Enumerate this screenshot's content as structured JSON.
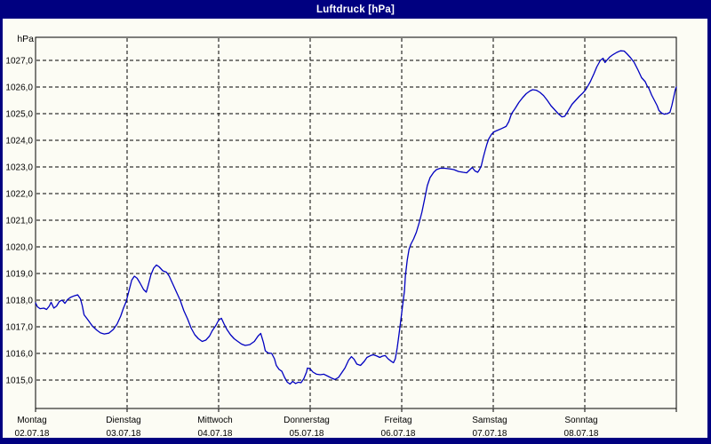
{
  "window": {
    "title": "Luftdruck [hPa]"
  },
  "colors": {
    "frame": "#000080",
    "title_text": "#FFFFFF",
    "plot_background": "#FCFCF4",
    "grid": "#000000",
    "axis": "#000000",
    "line": "#0000C0",
    "label_text": "#000000"
  },
  "chart_data": {
    "type": "line",
    "title": "Luftdruck [hPa]",
    "ylabel": "hPa",
    "xlabel": "",
    "grid": "dashed",
    "legend": "none",
    "ylim": [
      1013.9,
      1027.9
    ],
    "xlim_days": [
      0,
      7
    ],
    "y_tick_values": [
      1027,
      1026,
      1025,
      1024,
      1023,
      1022,
      1021,
      1020,
      1019,
      1018,
      1017,
      1016,
      1015
    ],
    "y_tick_labels": [
      "1027,0",
      "1026,0",
      "1025,0",
      "1024,0",
      "1023,0",
      "1022,0",
      "1021,0",
      "1020,0",
      "1019,0",
      "1018,0",
      "1017,0",
      "1016,0",
      "1015,0"
    ],
    "x_ticks": [
      {
        "day": "Montag",
        "date": "02.07.18"
      },
      {
        "day": "Dienstag",
        "date": "03.07.18"
      },
      {
        "day": "Mittwoch",
        "date": "04.07.18"
      },
      {
        "day": "Donnerstag",
        "date": "05.07.18"
      },
      {
        "day": "Freitag",
        "date": "06.07.18"
      },
      {
        "day": "Samstag",
        "date": "07.07.18"
      },
      {
        "day": "Sonntag",
        "date": "08.07.18"
      }
    ],
    "series": [
      {
        "name": "Luftdruck",
        "unit": "hPa",
        "x_unit": "days since Montag 02.07.18 00:00",
        "points": [
          [
            0,
            1017.9
          ],
          [
            0.02,
            1017.75
          ],
          [
            0.05,
            1017.68
          ],
          [
            0.09,
            1017.7
          ],
          [
            0.12,
            1017.65
          ],
          [
            0.15,
            1017.78
          ],
          [
            0.17,
            1017.92
          ],
          [
            0.2,
            1017.7
          ],
          [
            0.23,
            1017.78
          ],
          [
            0.26,
            1017.95
          ],
          [
            0.29,
            1018.0
          ],
          [
            0.32,
            1017.88
          ],
          [
            0.35,
            1018.02
          ],
          [
            0.38,
            1018.1
          ],
          [
            0.42,
            1018.16
          ],
          [
            0.46,
            1018.2
          ],
          [
            0.49,
            1018.05
          ],
          [
            0.51,
            1017.8
          ],
          [
            0.53,
            1017.45
          ],
          [
            0.57,
            1017.27
          ],
          [
            0.62,
            1017.03
          ],
          [
            0.67,
            1016.87
          ],
          [
            0.71,
            1016.77
          ],
          [
            0.75,
            1016.73
          ],
          [
            0.8,
            1016.76
          ],
          [
            0.85,
            1016.9
          ],
          [
            0.89,
            1017.1
          ],
          [
            0.93,
            1017.4
          ],
          [
            0.96,
            1017.7
          ],
          [
            0.99,
            1017.95
          ],
          [
            1.02,
            1018.35
          ],
          [
            1.05,
            1018.75
          ],
          [
            1.08,
            1018.9
          ],
          [
            1.11,
            1018.82
          ],
          [
            1.14,
            1018.65
          ],
          [
            1.18,
            1018.4
          ],
          [
            1.21,
            1018.3
          ],
          [
            1.23,
            1018.55
          ],
          [
            1.26,
            1018.95
          ],
          [
            1.29,
            1019.2
          ],
          [
            1.32,
            1019.32
          ],
          [
            1.35,
            1019.25
          ],
          [
            1.39,
            1019.1
          ],
          [
            1.43,
            1019.05
          ],
          [
            1.46,
            1018.9
          ],
          [
            1.5,
            1018.6
          ],
          [
            1.54,
            1018.3
          ],
          [
            1.58,
            1018.0
          ],
          [
            1.62,
            1017.6
          ],
          [
            1.66,
            1017.3
          ],
          [
            1.7,
            1016.95
          ],
          [
            1.74,
            1016.7
          ],
          [
            1.78,
            1016.55
          ],
          [
            1.82,
            1016.45
          ],
          [
            1.86,
            1016.5
          ],
          [
            1.9,
            1016.65
          ],
          [
            1.93,
            1016.85
          ],
          [
            1.97,
            1017.05
          ],
          [
            2.0,
            1017.25
          ],
          [
            2.03,
            1017.32
          ],
          [
            2.06,
            1017.1
          ],
          [
            2.09,
            1016.9
          ],
          [
            2.13,
            1016.7
          ],
          [
            2.17,
            1016.55
          ],
          [
            2.21,
            1016.45
          ],
          [
            2.25,
            1016.35
          ],
          [
            2.29,
            1016.3
          ],
          [
            2.34,
            1016.33
          ],
          [
            2.39,
            1016.45
          ],
          [
            2.43,
            1016.65
          ],
          [
            2.46,
            1016.75
          ],
          [
            2.49,
            1016.4
          ],
          [
            2.51,
            1016.1
          ],
          [
            2.54,
            1016.02
          ],
          [
            2.58,
            1016.0
          ],
          [
            2.61,
            1015.8
          ],
          [
            2.63,
            1015.55
          ],
          [
            2.66,
            1015.4
          ],
          [
            2.69,
            1015.33
          ],
          [
            2.72,
            1015.1
          ],
          [
            2.75,
            1014.92
          ],
          [
            2.78,
            1014.85
          ],
          [
            2.81,
            1014.95
          ],
          [
            2.84,
            1014.87
          ],
          [
            2.87,
            1014.92
          ],
          [
            2.9,
            1014.9
          ],
          [
            2.93,
            1015.05
          ],
          [
            2.96,
            1015.3
          ],
          [
            2.97,
            1015.45
          ],
          [
            3.0,
            1015.42
          ],
          [
            3.03,
            1015.3
          ],
          [
            3.07,
            1015.22
          ],
          [
            3.11,
            1015.2
          ],
          [
            3.15,
            1015.22
          ],
          [
            3.19,
            1015.15
          ],
          [
            3.23,
            1015.08
          ],
          [
            3.27,
            1015.02
          ],
          [
            3.31,
            1015.1
          ],
          [
            3.34,
            1015.25
          ],
          [
            3.38,
            1015.45
          ],
          [
            3.42,
            1015.75
          ],
          [
            3.45,
            1015.88
          ],
          [
            3.48,
            1015.78
          ],
          [
            3.51,
            1015.6
          ],
          [
            3.55,
            1015.55
          ],
          [
            3.59,
            1015.7
          ],
          [
            3.62,
            1015.85
          ],
          [
            3.66,
            1015.92
          ],
          [
            3.69,
            1015.95
          ],
          [
            3.73,
            1015.9
          ],
          [
            3.76,
            1015.85
          ],
          [
            3.79,
            1015.9
          ],
          [
            3.82,
            1015.92
          ],
          [
            3.85,
            1015.8
          ],
          [
            3.88,
            1015.72
          ],
          [
            3.91,
            1015.65
          ],
          [
            3.93,
            1015.8
          ],
          [
            3.95,
            1016.2
          ],
          [
            3.97,
            1016.7
          ],
          [
            3.99,
            1017.25
          ],
          [
            4.01,
            1017.8
          ],
          [
            4.03,
            1018.35
          ],
          [
            4.04,
            1018.9
          ],
          [
            4.06,
            1019.5
          ],
          [
            4.08,
            1019.9
          ],
          [
            4.1,
            1020.1
          ],
          [
            4.13,
            1020.3
          ],
          [
            4.16,
            1020.55
          ],
          [
            4.19,
            1020.9
          ],
          [
            4.22,
            1021.3
          ],
          [
            4.25,
            1021.8
          ],
          [
            4.28,
            1022.3
          ],
          [
            4.31,
            1022.6
          ],
          [
            4.35,
            1022.8
          ],
          [
            4.38,
            1022.9
          ],
          [
            4.42,
            1022.95
          ],
          [
            4.47,
            1022.95
          ],
          [
            4.52,
            1022.93
          ],
          [
            4.57,
            1022.9
          ],
          [
            4.62,
            1022.83
          ],
          [
            4.67,
            1022.8
          ],
          [
            4.71,
            1022.78
          ],
          [
            4.74,
            1022.88
          ],
          [
            4.77,
            1022.98
          ],
          [
            4.8,
            1022.85
          ],
          [
            4.83,
            1022.8
          ],
          [
            4.85,
            1022.9
          ],
          [
            4.87,
            1023.05
          ],
          [
            4.89,
            1023.35
          ],
          [
            4.91,
            1023.6
          ],
          [
            4.93,
            1023.85
          ],
          [
            4.95,
            1024.05
          ],
          [
            4.98,
            1024.22
          ],
          [
            5.01,
            1024.32
          ],
          [
            5.05,
            1024.38
          ],
          [
            5.09,
            1024.44
          ],
          [
            5.14,
            1024.52
          ],
          [
            5.17,
            1024.7
          ],
          [
            5.2,
            1025.0
          ],
          [
            5.24,
            1025.2
          ],
          [
            5.28,
            1025.42
          ],
          [
            5.32,
            1025.6
          ],
          [
            5.36,
            1025.75
          ],
          [
            5.4,
            1025.85
          ],
          [
            5.43,
            1025.9
          ],
          [
            5.47,
            1025.88
          ],
          [
            5.51,
            1025.8
          ],
          [
            5.55,
            1025.68
          ],
          [
            5.59,
            1025.5
          ],
          [
            5.63,
            1025.3
          ],
          [
            5.67,
            1025.15
          ],
          [
            5.71,
            1025.0
          ],
          [
            5.75,
            1024.88
          ],
          [
            5.78,
            1024.9
          ],
          [
            5.8,
            1025.0
          ],
          [
            5.83,
            1025.18
          ],
          [
            5.86,
            1025.35
          ],
          [
            5.9,
            1025.5
          ],
          [
            5.94,
            1025.65
          ],
          [
            5.98,
            1025.78
          ],
          [
            6.01,
            1025.9
          ],
          [
            6.03,
            1026.02
          ],
          [
            6.06,
            1026.2
          ],
          [
            6.1,
            1026.5
          ],
          [
            6.13,
            1026.75
          ],
          [
            6.17,
            1027.0
          ],
          [
            6.2,
            1027.08
          ],
          [
            6.22,
            1026.92
          ],
          [
            6.24,
            1027.0
          ],
          [
            6.27,
            1027.12
          ],
          [
            6.31,
            1027.22
          ],
          [
            6.35,
            1027.3
          ],
          [
            6.39,
            1027.36
          ],
          [
            6.43,
            1027.35
          ],
          [
            6.46,
            1027.25
          ],
          [
            6.5,
            1027.1
          ],
          [
            6.54,
            1026.92
          ],
          [
            6.58,
            1026.65
          ],
          [
            6.62,
            1026.35
          ],
          [
            6.66,
            1026.2
          ],
          [
            6.68,
            1026.05
          ],
          [
            6.7,
            1025.95
          ],
          [
            6.73,
            1025.7
          ],
          [
            6.76,
            1025.5
          ],
          [
            6.79,
            1025.3
          ],
          [
            6.81,
            1025.12
          ],
          [
            6.84,
            1025.02
          ],
          [
            6.87,
            1024.98
          ],
          [
            6.9,
            1025.0
          ],
          [
            6.93,
            1025.05
          ],
          [
            6.95,
            1025.3
          ],
          [
            6.97,
            1025.6
          ],
          [
            6.99,
            1025.92
          ],
          [
            7.0,
            1026.0
          ]
        ]
      }
    ]
  }
}
